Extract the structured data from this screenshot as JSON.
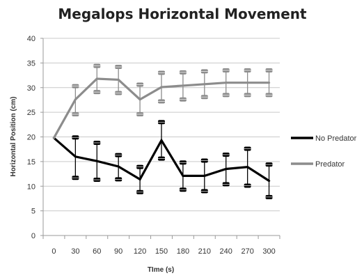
{
  "chart_data": {
    "type": "line",
    "title": "Megalops Horizontal Movement",
    "xlabel": "TIme (s)",
    "ylabel": "Horizontal Position (cm)",
    "x": [
      0,
      30,
      60,
      90,
      120,
      150,
      180,
      210,
      240,
      270,
      300
    ],
    "x_tick_labels": [
      "0",
      "30",
      "60",
      "90",
      "120",
      "150",
      "180",
      "210",
      "240",
      "270",
      "300"
    ],
    "y_ticks": [
      "0",
      "5",
      "10",
      "15",
      "20",
      "25",
      "30",
      "35",
      "40"
    ],
    "ylim": [
      0,
      40
    ],
    "grid": "horizontal",
    "legend_position": "right",
    "series": [
      {
        "name": "No Predator",
        "color": "#000000",
        "values": [
          19.8,
          16.0,
          15.1,
          14.0,
          11.4,
          19.3,
          12.1,
          12.1,
          13.5,
          13.9,
          11.1
        ],
        "error_upper": [
          19.8,
          19.9,
          18.8,
          16.3,
          13.9,
          23.0,
          14.8,
          15.2,
          16.4,
          17.6,
          14.4
        ],
        "error_lower": [
          19.8,
          11.7,
          11.3,
          11.4,
          8.8,
          15.6,
          9.3,
          9.0,
          10.4,
          10.1,
          7.8
        ]
      },
      {
        "name": "Predator",
        "color": "#8c8c8c",
        "values": [
          19.8,
          27.6,
          31.8,
          31.6,
          27.6,
          30.1,
          30.4,
          30.7,
          31.0,
          31.0,
          31.0
        ],
        "error_upper": [
          19.8,
          30.3,
          34.4,
          34.2,
          30.6,
          33.0,
          33.1,
          33.3,
          33.5,
          33.5,
          33.5
        ],
        "error_lower": [
          19.8,
          24.6,
          29.1,
          28.9,
          24.6,
          27.2,
          27.6,
          28.1,
          28.5,
          28.5,
          28.5
        ]
      }
    ]
  }
}
